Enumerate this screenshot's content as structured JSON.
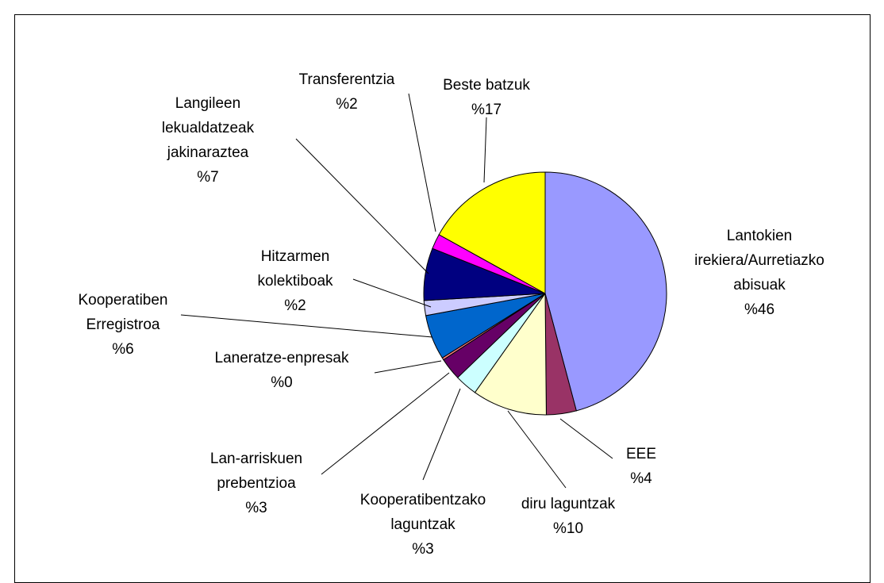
{
  "chart_data": {
    "type": "pie",
    "categories": [
      "Lantokien irekiera/Aurretiazko abisuak",
      "EEE",
      "diru laguntzak",
      "Kooperatibentzako laguntzak",
      "Lan-arriskuen prebentzioa",
      "Laneratze-enpresak",
      "Kooperatiben Erregistroa",
      "Hitzarmen kolektiboak",
      "Langileen lekualdatzeak jakinaraztea",
      "Transferentzia",
      "Beste batzuk"
    ],
    "values": [
      46,
      4,
      10,
      3,
      3,
      0.3,
      6,
      2,
      7,
      2,
      17
    ],
    "value_labels": [
      "%46",
      "%4",
      "%10",
      "%3",
      "%3",
      "%0",
      "%6",
      "%2",
      "%7",
      "%2",
      "%17"
    ],
    "colors": [
      "#9999ff",
      "#993366",
      "#ffffcc",
      "#ccffff",
      "#660066",
      "#ff8080",
      "#0066cc",
      "#ccccff",
      "#000080",
      "#ff00ff",
      "#ffff00"
    ]
  }
}
